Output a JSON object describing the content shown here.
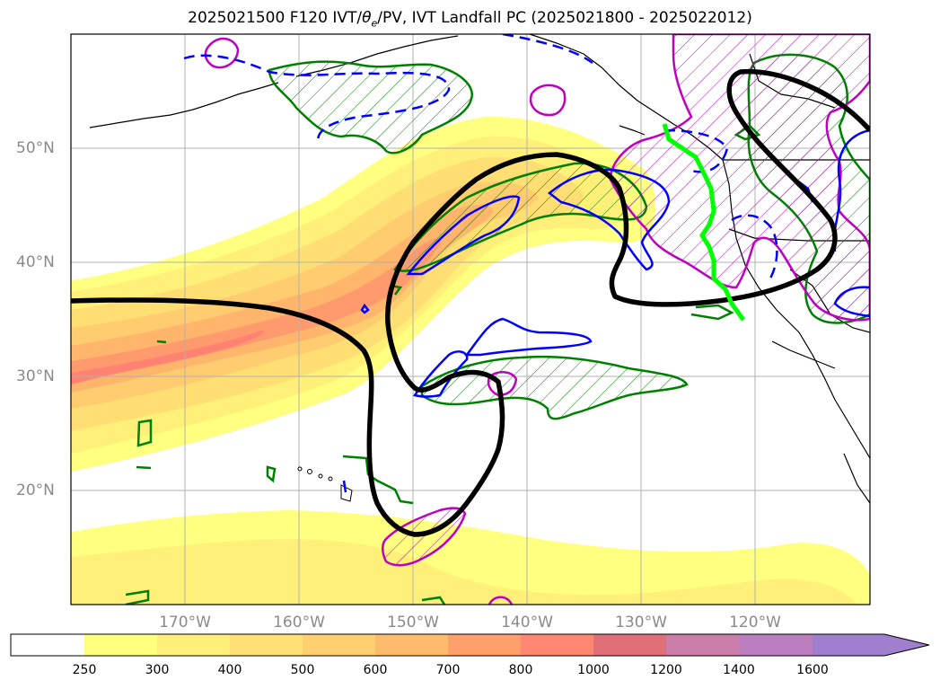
{
  "title": {
    "prefix": "2025021500 F120 IVT/",
    "theta": "θ",
    "theta_sub": "e",
    "suffix": "/PV, IVT Landfall PC (2025021800 - 2025022012)"
  },
  "map": {
    "lat_labels": [
      "50°N",
      "40°N",
      "30°N",
      "20°N"
    ],
    "lon_labels": [
      "170°W",
      "160°W",
      "150°W",
      "140°W",
      "130°W",
      "120°W"
    ],
    "colors": {
      "ivt_fill": [
        "#ffff80",
        "#fff07a",
        "#ffdf74",
        "#ffcc70",
        "#ffb56c",
        "#ff9a6e",
        "#ff8272"
      ],
      "green_contour": "#008000",
      "blue_contour": "#0000ff",
      "magenta_contour": "#c000c0",
      "black_contour": "#000000",
      "landfall_line": "#00ff00"
    }
  },
  "colorbar": {
    "ticks": [
      "250",
      "300",
      "400",
      "500",
      "600",
      "700",
      "800",
      "1000",
      "1200",
      "1400",
      "1600"
    ],
    "colors": [
      "#ffffff",
      "#ffff80",
      "#fff07a",
      "#ffe074",
      "#ffd070",
      "#ffbb6c",
      "#ffa06c",
      "#ff8670",
      "#e07078",
      "#cc7eaa",
      "#bb7fbf",
      "#a07fcf"
    ]
  }
}
